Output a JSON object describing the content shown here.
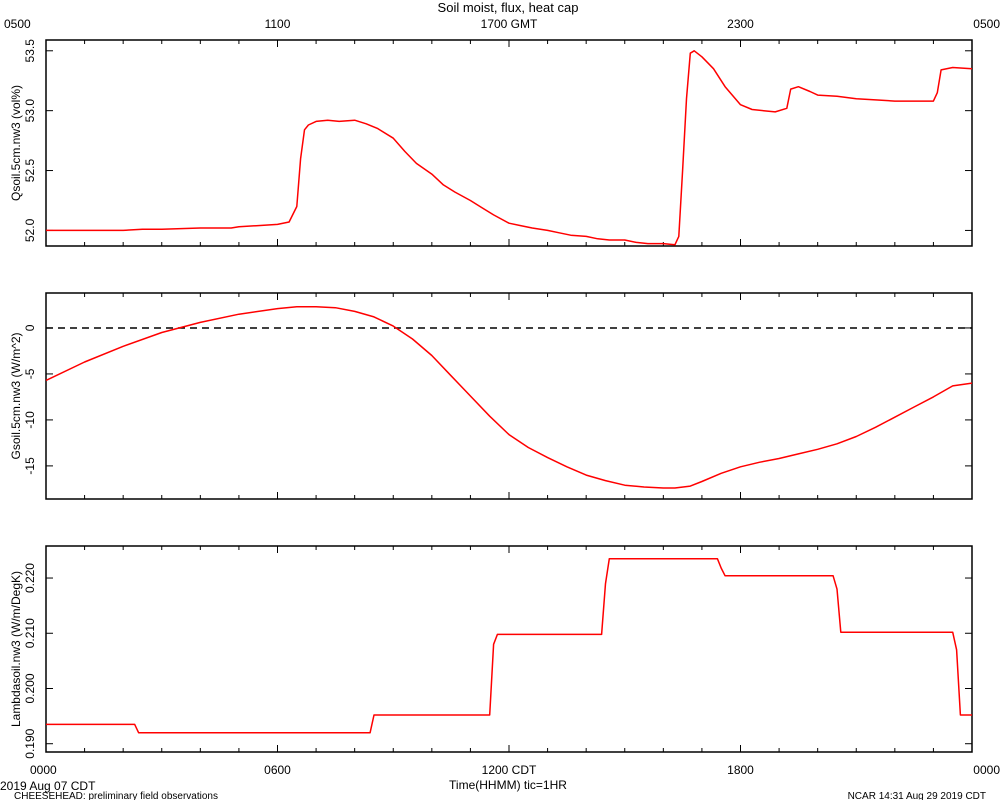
{
  "title": "Soil moist, flux, heat cap",
  "top_axis": {
    "tick_labels": [
      "0500",
      "1100",
      "1700 GMT",
      "2300",
      "0500"
    ],
    "tick_hours": [
      0,
      6,
      12,
      18,
      24
    ]
  },
  "bottom_axis": {
    "tick_labels": [
      "0000",
      "0600",
      "1200 CDT",
      "1800",
      "0000"
    ],
    "tick_hours": [
      0,
      6,
      12,
      18,
      24
    ],
    "xlabel": "Time(HHMM)  tic=1HR"
  },
  "footer": {
    "left_date": "2019 Aug 07 CDT",
    "left_note": "CHEESEHEAD: preliminary field observations",
    "right_note": "NCAR 14:31 Aug 29 2019 CDT"
  },
  "colors": {
    "series": "#ff0000",
    "axis": "#000000",
    "zero_line": "#000000"
  },
  "chart_data": [
    {
      "type": "line",
      "ylabel": "Qsoil.5cm.nw3 (vol%)",
      "ylim": [
        51.87,
        53.59
      ],
      "yticks": [
        52.0,
        52.5,
        53.0,
        53.5
      ],
      "ytick_labels": [
        "52.0",
        "52.5",
        "53.0",
        "53.5"
      ],
      "x_unit": "hours since 0000 CDT",
      "x": [
        0,
        1,
        2,
        2.5,
        3,
        4,
        4.8,
        5,
        5.5,
        6,
        6.3,
        6.5,
        6.6,
        6.7,
        6.8,
        7,
        7.3,
        7.6,
        8,
        8.3,
        8.6,
        9,
        9.3,
        9.6,
        10,
        10.3,
        10.6,
        11,
        11.3,
        11.6,
        12,
        12.3,
        12.6,
        13,
        13.3,
        13.6,
        14,
        14.3,
        14.6,
        15,
        15.3,
        15.6,
        16,
        16.3,
        16.4,
        16.5,
        16.6,
        16.7,
        16.8,
        17,
        17.3,
        17.6,
        18,
        18.3,
        18.6,
        18.9,
        19.2,
        19.3,
        19.5,
        19.8,
        20,
        20.5,
        21,
        21.5,
        22,
        22.5,
        23,
        23.1,
        23.2,
        23.5,
        24
      ],
      "y": [
        52.0,
        52.0,
        52.0,
        52.01,
        52.01,
        52.02,
        52.02,
        52.03,
        52.04,
        52.05,
        52.07,
        52.2,
        52.6,
        52.84,
        52.88,
        52.91,
        52.92,
        52.91,
        52.92,
        52.89,
        52.85,
        52.77,
        52.66,
        52.56,
        52.47,
        52.38,
        52.32,
        52.25,
        52.19,
        52.13,
        52.06,
        52.04,
        52.02,
        52.0,
        51.98,
        51.96,
        51.95,
        51.93,
        51.92,
        51.92,
        51.9,
        51.89,
        51.89,
        51.88,
        51.95,
        52.5,
        53.1,
        53.48,
        53.5,
        53.45,
        53.35,
        53.2,
        53.05,
        53.01,
        53.0,
        52.99,
        53.02,
        53.18,
        53.2,
        53.16,
        53.13,
        53.12,
        53.1,
        53.09,
        53.08,
        53.08,
        53.08,
        53.15,
        53.34,
        53.36,
        53.35
      ]
    },
    {
      "type": "line",
      "ylabel": "Gsoil.5cm.nw3 (W/m^2)",
      "ylim": [
        -18.6,
        3.8
      ],
      "yticks": [
        0,
        -5,
        -10,
        -15
      ],
      "ytick_labels": [
        "0",
        "-5",
        "-10",
        "-15"
      ],
      "reference_line": 0,
      "x_unit": "hours since 0000 CDT",
      "x": [
        0,
        1,
        2,
        3,
        4,
        5,
        6,
        6.5,
        7,
        7.5,
        8,
        8.5,
        9,
        9.5,
        10,
        10.5,
        11,
        11.5,
        12,
        12.5,
        13,
        13.5,
        14,
        14.5,
        15,
        15.5,
        16,
        16.3,
        16.7,
        17,
        17.5,
        18,
        18.5,
        19,
        19.5,
        20,
        20.5,
        21,
        21.5,
        22,
        22.5,
        23,
        23.5,
        24
      ],
      "y": [
        -5.7,
        -3.7,
        -2.0,
        -0.5,
        0.6,
        1.5,
        2.1,
        2.3,
        2.3,
        2.2,
        1.8,
        1.2,
        0.2,
        -1.2,
        -3.0,
        -5.2,
        -7.4,
        -9.6,
        -11.6,
        -13.0,
        -14.1,
        -15.1,
        -16.0,
        -16.6,
        -17.1,
        -17.3,
        -17.4,
        -17.4,
        -17.2,
        -16.7,
        -15.8,
        -15.1,
        -14.6,
        -14.2,
        -13.7,
        -13.2,
        -12.6,
        -11.8,
        -10.8,
        -9.7,
        -8.6,
        -7.5,
        -6.3,
        -6.0
      ]
    },
    {
      "type": "line",
      "ylabel": "Lambdasoil.nw3 (W/m/DegK)",
      "ylim": [
        0.1885,
        0.2258
      ],
      "yticks": [
        0.19,
        0.2,
        0.21,
        0.22
      ],
      "ytick_labels": [
        "0.190",
        "0.200",
        "0.210",
        "0.220"
      ],
      "x_unit": "hours since 0000 CDT",
      "x": [
        0,
        2.3,
        2.4,
        2.5,
        8.4,
        8.5,
        8.6,
        11.5,
        11.6,
        11.7,
        14.4,
        14.5,
        14.6,
        17.4,
        17.5,
        17.6,
        20.4,
        20.5,
        20.6,
        23.5,
        23.6,
        23.7,
        24
      ],
      "y": [
        0.1935,
        0.1935,
        0.192,
        0.192,
        0.192,
        0.1952,
        0.1952,
        0.1952,
        0.208,
        0.2098,
        0.2098,
        0.219,
        0.2235,
        0.2235,
        0.2218,
        0.2204,
        0.2204,
        0.218,
        0.2102,
        0.2102,
        0.207,
        0.1952,
        0.1952
      ]
    }
  ]
}
